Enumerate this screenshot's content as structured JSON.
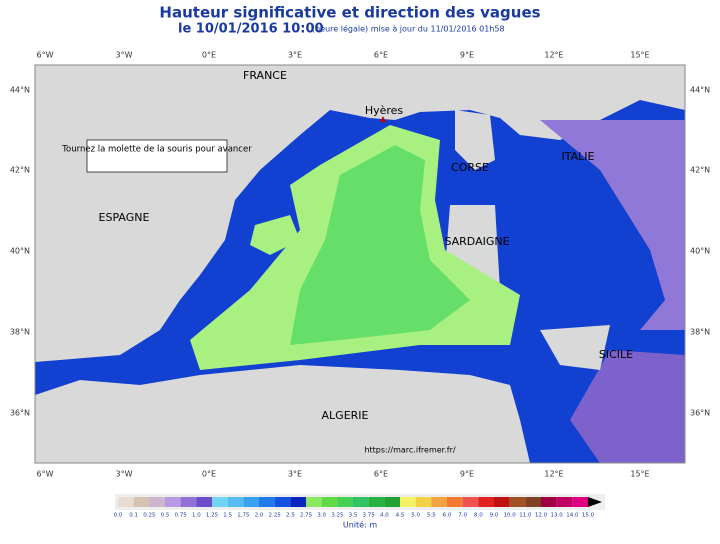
{
  "header": {
    "title": "Hauteur significative et direction des vagues",
    "date": "le 10/01/2016 10:00",
    "update": "(heure légale) mise à jour du 11/01/2016 01h58"
  },
  "map": {
    "longitudes": [
      "6°W",
      "3°W",
      "0°E",
      "3°E",
      "6°E",
      "9°E",
      "12°E",
      "15°E"
    ],
    "latitudes": [
      "44°N",
      "42°N",
      "40°N",
      "38°N",
      "36°N"
    ],
    "places": [
      "FRANCE",
      "Hyères",
      "CORSE",
      "ITALIE",
      "ESPAGNE",
      "SARDAIGNE",
      "SICILE",
      "ALGERIE"
    ],
    "note": "Tournez la molette de la souris pour avancer",
    "source": "https://marc.ifremer.fr/"
  },
  "legend": {
    "labels": [
      "0.0",
      "0.1",
      "0.25",
      "0.5",
      "0.75",
      "1.0",
      "1.25",
      "1.5",
      "1.75",
      "2.0",
      "2.25",
      "2.5",
      "2.75",
      "3.0",
      "3.25",
      "3.5",
      "3.75",
      "4.0",
      "4.5",
      "5.0",
      "5.5",
      "6.0",
      "7.0",
      "8.0",
      "9.0",
      "10.0",
      "11.0",
      "12.0",
      "13.0",
      "14.0",
      "15.0"
    ],
    "colors": [
      "#e8dcd0",
      "#d6c2b2",
      "#cdb4cf",
      "#b79ae2",
      "#9272d8",
      "#6c4ec8",
      "#70d4f4",
      "#56bcf2",
      "#38a2f0",
      "#207ae8",
      "#1252e0",
      "#0a24c0",
      "#8ce864",
      "#62da44",
      "#44d052",
      "#32c264",
      "#28b244",
      "#20a234",
      "#f2f264",
      "#f2d244",
      "#f2a442",
      "#f27a32",
      "#f05252",
      "#e02222",
      "#c01212",
      "#a05222",
      "#804222",
      "#a00042",
      "#c00062",
      "#e00082"
    ],
    "unit": "Unité: m"
  }
}
